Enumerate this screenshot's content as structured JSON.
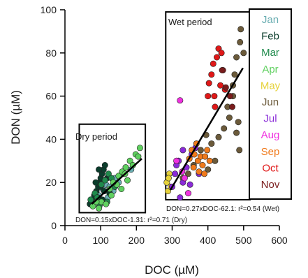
{
  "chart_data": {
    "type": "scatter",
    "xlabel": "DOC (µM)",
    "ylabel": "DON (µM)",
    "xlim": [
      0,
      600
    ],
    "ylim": [
      0,
      100
    ],
    "x_ticks": [
      0,
      100,
      200,
      300,
      400,
      500,
      600
    ],
    "y_ticks": [
      0,
      20,
      40,
      60,
      80,
      100
    ],
    "grid": false,
    "legend_position": "right",
    "legend": [
      {
        "name": "Jan",
        "color": "#6aaeb2"
      },
      {
        "name": "Feb",
        "color": "#0b3d2c"
      },
      {
        "name": "Mar",
        "color": "#1f8a4c"
      },
      {
        "name": "Apr",
        "color": "#5fd05f"
      },
      {
        "name": "May",
        "color": "#e6d23a"
      },
      {
        "name": "Jun",
        "color": "#6b5a3a"
      },
      {
        "name": "Jul",
        "color": "#8a2bd8"
      },
      {
        "name": "Aug",
        "color": "#f030e0"
      },
      {
        "name": "Sep",
        "color": "#f07a1c"
      },
      {
        "name": "Oct",
        "color": "#e01818"
      },
      {
        "name": "Nov",
        "color": "#7a1c1c"
      }
    ],
    "annotations": {
      "dry_label": "Dry period",
      "wet_label": "Wet period",
      "dry_equation": "DON=0.15xDOC-1.31: r²=0.71 (Dry)",
      "wet_equation": "DON=0.27xDOC-62.1: r²=0.54 (Wet)"
    },
    "dry_box": {
      "x": [
        40,
        225
      ],
      "y": [
        6,
        47
      ]
    },
    "wet_box": {
      "x": [
        282,
        518
      ],
      "y": [
        12,
        99
      ]
    },
    "fit_lines": [
      {
        "name": "Dry",
        "x": [
          75,
          215
        ],
        "y": [
          10,
          31
        ]
      },
      {
        "name": "Wet",
        "x": [
          295,
          498
        ],
        "y": [
          16.5,
          73
        ]
      }
    ],
    "series": [
      {
        "name": "Jan",
        "color": "#6aaeb2",
        "points": [
          [
            78,
            12
          ],
          [
            95,
            14
          ],
          [
            105,
            17
          ],
          [
            115,
            19
          ],
          [
            125,
            18
          ],
          [
            135,
            16
          ],
          [
            140,
            22
          ],
          [
            150,
            20
          ],
          [
            165,
            24
          ],
          [
            185,
            26
          ],
          [
            98,
            10
          ],
          [
            120,
            13
          ]
        ]
      },
      {
        "name": "Feb",
        "color": "#0b3d2c",
        "points": [
          [
            70,
            10
          ],
          [
            78,
            12
          ],
          [
            82,
            14
          ],
          [
            88,
            16
          ],
          [
            93,
            18
          ],
          [
            96,
            20
          ],
          [
            100,
            22
          ],
          [
            104,
            24
          ],
          [
            108,
            26
          ],
          [
            112,
            28
          ],
          [
            86,
            20
          ],
          [
            95,
            26
          ],
          [
            100,
            18
          ],
          [
            110,
            16
          ],
          [
            118,
            22
          ],
          [
            125,
            15
          ],
          [
            92,
            13
          ],
          [
            105,
            12
          ]
        ]
      },
      {
        "name": "Mar",
        "color": "#1f8a4c",
        "points": [
          [
            72,
            12
          ],
          [
            84,
            15
          ],
          [
            90,
            13
          ],
          [
            102,
            19
          ],
          [
            112,
            21
          ],
          [
            122,
            24
          ],
          [
            130,
            22
          ],
          [
            96,
            9
          ],
          [
            140,
            18
          ],
          [
            118,
            11
          ]
        ]
      },
      {
        "name": "Apr",
        "color": "#5fd05f",
        "points": [
          [
            78,
            9
          ],
          [
            95,
            8
          ],
          [
            102,
            11
          ],
          [
            115,
            10
          ],
          [
            130,
            14
          ],
          [
            145,
            19
          ],
          [
            150,
            23
          ],
          [
            160,
            25
          ],
          [
            170,
            27
          ],
          [
            182,
            30
          ],
          [
            198,
            33
          ],
          [
            210,
            36
          ],
          [
            135,
            20
          ],
          [
            175,
            21
          ],
          [
            190,
            28
          ],
          [
            205,
            32
          ],
          [
            158,
            17
          ],
          [
            168,
            24
          ],
          [
            88,
            11
          ],
          [
            125,
            17
          ]
        ]
      },
      {
        "name": "May",
        "color": "#e6d23a",
        "points": [
          [
            285,
            20
          ],
          [
            288,
            16
          ],
          [
            292,
            24
          ],
          [
            296,
            18
          ],
          [
            290,
            22
          ]
        ]
      },
      {
        "name": "Jun",
        "color": "#6b5a3a",
        "points": [
          [
            330,
            22
          ],
          [
            345,
            24
          ],
          [
            360,
            28
          ],
          [
            380,
            35
          ],
          [
            400,
            26
          ],
          [
            410,
            38
          ],
          [
            430,
            41
          ],
          [
            445,
            45
          ],
          [
            455,
            55
          ],
          [
            470,
            60
          ],
          [
            475,
            70
          ],
          [
            480,
            78
          ],
          [
            490,
            85
          ],
          [
            492,
            91
          ],
          [
            500,
            80
          ],
          [
            485,
            48
          ],
          [
            480,
            43
          ],
          [
            488,
            35
          ],
          [
            470,
            65
          ],
          [
            460,
            50
          ],
          [
            420,
            30
          ],
          [
            395,
            42
          ]
        ]
      },
      {
        "name": "Jul",
        "color": "#8a2bd8",
        "points": [
          [
            300,
            18
          ],
          [
            308,
            24
          ],
          [
            318,
            30
          ],
          [
            322,
            13
          ],
          [
            330,
            20
          ],
          [
            340,
            27
          ],
          [
            350,
            19
          ],
          [
            355,
            33
          ],
          [
            365,
            36
          ],
          [
            375,
            24
          ],
          [
            330,
            35
          ],
          [
            312,
            28
          ]
        ]
      },
      {
        "name": "Aug",
        "color": "#f030e0",
        "points": [
          [
            312,
            30
          ],
          [
            322,
            58
          ],
          [
            335,
            22
          ],
          [
            345,
            15
          ],
          [
            328,
            25
          ]
        ]
      },
      {
        "name": "Sep",
        "color": "#f07a1c",
        "points": [
          [
            348,
            31
          ],
          [
            355,
            35
          ],
          [
            360,
            27
          ],
          [
            368,
            38
          ],
          [
            372,
            30
          ],
          [
            375,
            25
          ],
          [
            380,
            32
          ],
          [
            385,
            28
          ],
          [
            392,
            32
          ],
          [
            398,
            35
          ],
          [
            405,
            30
          ],
          [
            390,
            24
          ],
          [
            362,
            33
          ]
        ]
      },
      {
        "name": "Oct",
        "color": "#e01818",
        "points": [
          [
            400,
            60
          ],
          [
            403,
            66
          ],
          [
            410,
            70
          ],
          [
            415,
            75
          ],
          [
            418,
            60
          ],
          [
            425,
            78
          ],
          [
            430,
            82
          ],
          [
            435,
            65
          ],
          [
            438,
            80
          ],
          [
            442,
            72
          ],
          [
            448,
            63
          ],
          [
            420,
            55
          ]
        ]
      },
      {
        "name": "Nov",
        "color": "#7a1c1c",
        "points": [
          [
            440,
            72
          ],
          [
            450,
            64
          ],
          [
            462,
            60
          ],
          [
            468,
            55
          ]
        ]
      }
    ]
  }
}
